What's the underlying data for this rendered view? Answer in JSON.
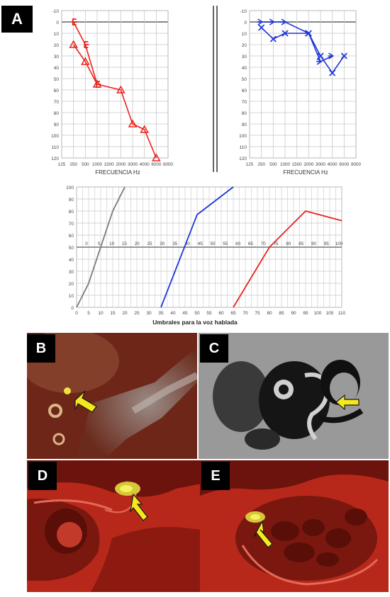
{
  "panels": {
    "a": "A",
    "b": "B",
    "c": "C",
    "d": "D",
    "e": "E"
  },
  "chart_data": [
    {
      "type": "line",
      "panel": "A-left",
      "x_axis_label": "FRECUENCIA Hz",
      "x_ticks": [
        "125",
        "250",
        "500",
        "1000",
        "1500",
        "2000",
        "3000",
        "4000",
        "6000",
        "8000"
      ],
      "y_ticks": [
        -10,
        0,
        10,
        20,
        30,
        40,
        50,
        60,
        70,
        80,
        90,
        100,
        110,
        120
      ],
      "ylim": [
        -10,
        120
      ],
      "y_inverted": true,
      "grid": true,
      "series": [
        {
          "marker": "bracket",
          "color": "#e8231e",
          "x": [
            "250",
            "500",
            "1000"
          ],
          "y": [
            0,
            20,
            55
          ]
        },
        {
          "marker": "triangle",
          "color": "#e8231e",
          "x": [
            "250",
            "500",
            "1000",
            "2000",
            "3000",
            "4000",
            "6000"
          ],
          "y": [
            20,
            35,
            55,
            60,
            90,
            95,
            120
          ]
        }
      ]
    },
    {
      "type": "line",
      "panel": "A-right",
      "x_axis_label": "FRECUENCIA Hz",
      "x_ticks": [
        "125",
        "250",
        "500",
        "1000",
        "1500",
        "2000",
        "3000",
        "4000",
        "6000",
        "8000"
      ],
      "y_ticks": [
        -10,
        0,
        10,
        20,
        30,
        40,
        50,
        60,
        70,
        80,
        90,
        100,
        110,
        120
      ],
      "ylim": [
        -10,
        120
      ],
      "y_inverted": true,
      "grid": true,
      "series": [
        {
          "marker": "arrow",
          "color": "#1f36d6",
          "x": [
            "250",
            "500",
            "1000",
            "2000",
            "3000",
            "4000"
          ],
          "y": [
            0,
            0,
            0,
            10,
            35,
            30
          ]
        },
        {
          "marker": "x",
          "color": "#1f36d6",
          "x": [
            "250",
            "500",
            "1000",
            "2000",
            "3000",
            "4000",
            "6000"
          ],
          "y": [
            5,
            15,
            10,
            10,
            30,
            45,
            30
          ]
        }
      ]
    },
    {
      "type": "line",
      "panel": "A-bottom",
      "x_axis_label": "Umbrales para la voz hablada",
      "x_ticks": [
        0,
        5,
        10,
        15,
        20,
        25,
        30,
        35,
        40,
        45,
        50,
        55,
        60,
        65,
        70,
        75,
        80,
        85,
        90,
        95,
        100,
        105,
        110
      ],
      "mid_ticks": [
        0,
        5,
        10,
        15,
        20,
        25,
        30,
        35,
        40,
        45,
        50,
        55,
        60,
        65,
        70,
        75,
        80,
        85,
        90,
        95,
        100
      ],
      "y_ticks": [
        0,
        10,
        20,
        30,
        40,
        50,
        60,
        70,
        80,
        90,
        100
      ],
      "ylim": [
        0,
        100
      ],
      "xlim": [
        0,
        110
      ],
      "grid": true,
      "series": [
        {
          "color": "#7a7a7a",
          "x": [
            0,
            5,
            15,
            20
          ],
          "y": [
            0,
            20,
            80,
            100
          ]
        },
        {
          "color": "#1f36d6",
          "x": [
            35,
            50,
            65
          ],
          "y": [
            0,
            77,
            100
          ]
        },
        {
          "color": "#e8231e",
          "x": [
            65,
            80,
            95,
            110
          ],
          "y": [
            0,
            50,
            80,
            72
          ]
        }
      ]
    }
  ]
}
